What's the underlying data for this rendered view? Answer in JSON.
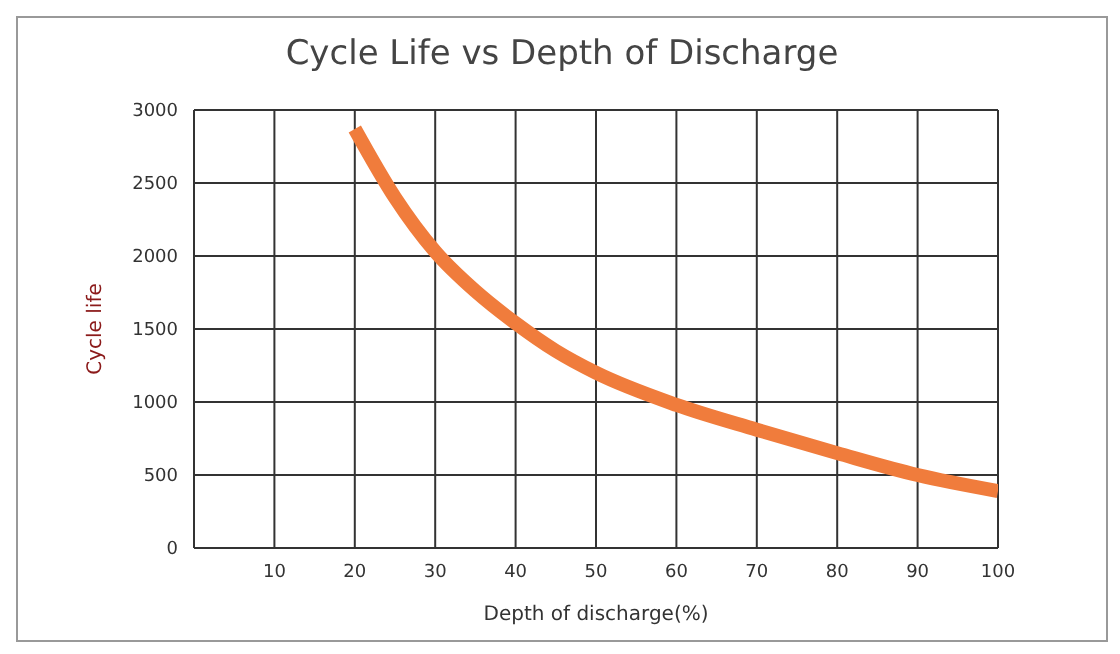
{
  "chart_data": {
    "type": "line",
    "title": "Cycle Life vs Depth of Discharge",
    "xlabel": "Depth of discharge(%)",
    "ylabel": "Cycle life",
    "x": [
      20,
      25,
      30,
      35,
      40,
      45,
      50,
      60,
      70,
      80,
      90,
      100
    ],
    "series": [
      {
        "color": "#f07c3c",
        "values": [
          2870,
          2400,
          2030,
          1760,
          1540,
          1350,
          1200,
          980,
          810,
          650,
          500,
          390
        ]
      }
    ],
    "xlim": [
      0,
      100
    ],
    "xticks": [
      10,
      20,
      30,
      40,
      50,
      60,
      70,
      80,
      90,
      100
    ],
    "ylim": [
      0,
      3000
    ],
    "yticks": [
      0,
      500,
      1000,
      1500,
      2000,
      2500,
      3000
    ],
    "grid": true,
    "legend": false,
    "marker": "none",
    "line_style": "solid"
  }
}
